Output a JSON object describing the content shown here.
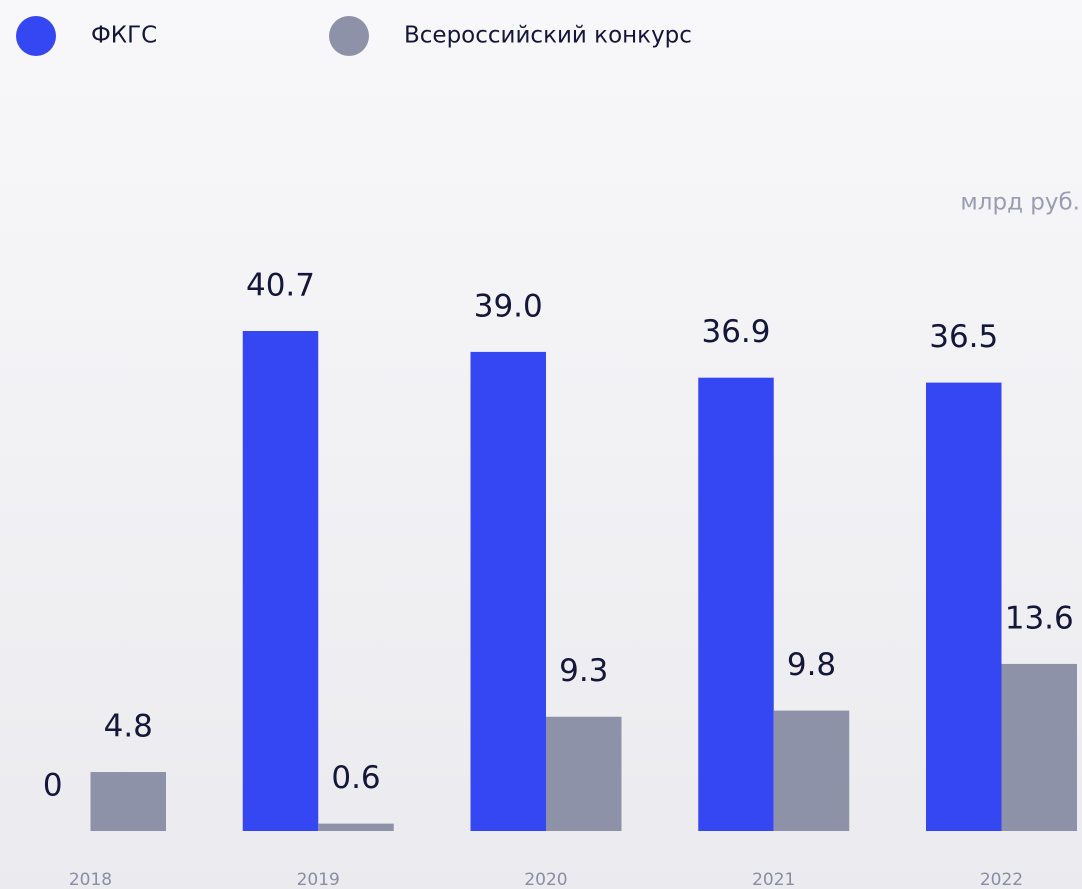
{
  "chart_data": {
    "type": "bar",
    "unit": "млрд руб.",
    "categories": [
      "2018",
      "2019",
      "2020",
      "2021",
      "2022"
    ],
    "series": [
      {
        "name": "ФКГС",
        "color": "#3447f2",
        "values": [
          0,
          40.7,
          39.0,
          36.9,
          36.5
        ],
        "value_labels": [
          "0",
          "40.7",
          "39.0",
          "36.9",
          "36.5"
        ]
      },
      {
        "name": "Всероссийский конкурс",
        "color": "#8e92a8",
        "values": [
          4.8,
          0.6,
          9.3,
          9.8,
          13.6
        ],
        "value_labels": [
          "4.8",
          "0.6",
          "9.3",
          "9.8",
          "13.6"
        ]
      }
    ]
  }
}
